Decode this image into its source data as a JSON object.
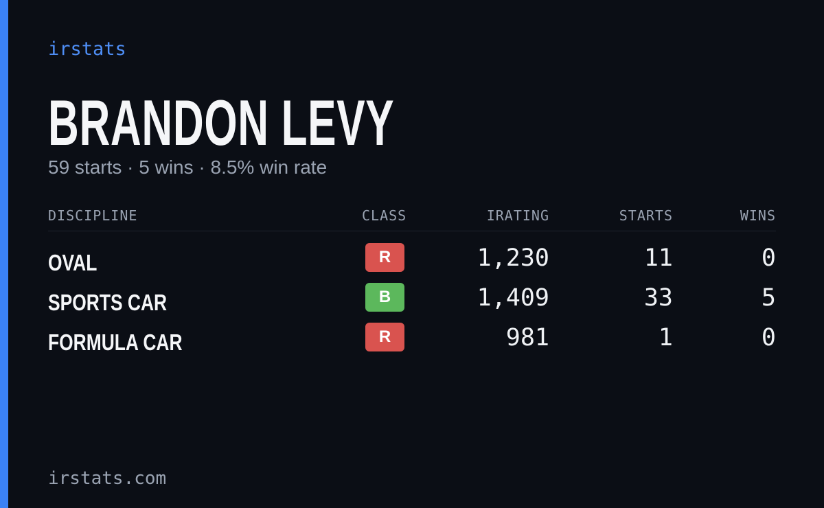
{
  "brand": "irstats",
  "player": {
    "name": "BRANDON LEVY",
    "summary": "59 starts · 5 wins · 8.5% win rate"
  },
  "table": {
    "headers": [
      "DISCIPLINE",
      "CLASS",
      "IRATING",
      "STARTS",
      "WINS"
    ],
    "rows": [
      {
        "discipline": "OVAL",
        "class": "R",
        "class_color": "#d9534f",
        "irating": "1,230",
        "starts": "11",
        "wins": "0"
      },
      {
        "discipline": "SPORTS CAR",
        "class": "B",
        "class_color": "#5cb85c",
        "irating": "1,409",
        "starts": "33",
        "wins": "5"
      },
      {
        "discipline": "FORMULA CAR",
        "class": "R",
        "class_color": "#d9534f",
        "irating": "981",
        "starts": "1",
        "wins": "0"
      }
    ]
  },
  "footer": "irstats.com"
}
